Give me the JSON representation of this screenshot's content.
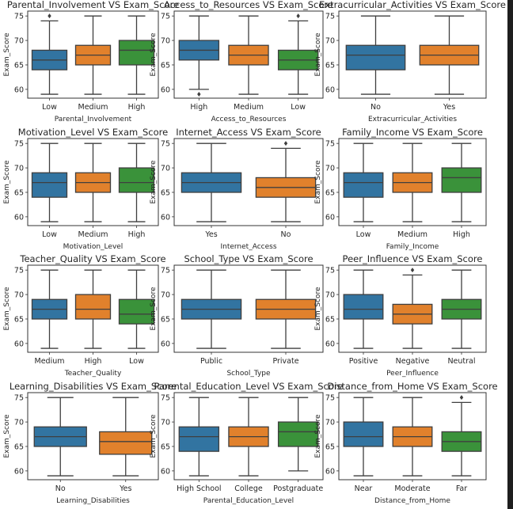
{
  "chart_data": {
    "type": "boxplot",
    "ylabel": "Exam_Score",
    "ylim": [
      58.2,
      76
    ],
    "yticks": [
      60,
      65,
      70,
      75
    ],
    "grid": false,
    "palette": [
      "#3274a1",
      "#e1812c",
      "#3a923a"
    ],
    "panels": [
      {
        "title": "Parental_Involvement VS Exam_Score",
        "xlabel": "Parental_Involvement",
        "boxes": [
          {
            "category": "Low",
            "whislo": 59,
            "q1": 64,
            "median": 66,
            "q3": 68,
            "whishi": 74,
            "outliers": [
              75
            ]
          },
          {
            "category": "Medium",
            "whislo": 59,
            "q1": 65,
            "median": 67,
            "q3": 69,
            "whishi": 75,
            "outliers": []
          },
          {
            "category": "High",
            "whislo": 59,
            "q1": 65,
            "median": 68,
            "q3": 70,
            "whishi": 75,
            "outliers": []
          }
        ]
      },
      {
        "title": "Access_to_Resources VS Exam_Score",
        "xlabel": "Access_to_Resources",
        "boxes": [
          {
            "category": "High",
            "whislo": 60,
            "q1": 66,
            "median": 68,
            "q3": 70,
            "whishi": 75,
            "outliers": [
              59
            ]
          },
          {
            "category": "Medium",
            "whislo": 59,
            "q1": 65,
            "median": 67,
            "q3": 69,
            "whishi": 75,
            "outliers": []
          },
          {
            "category": "Low",
            "whislo": 59,
            "q1": 64,
            "median": 66,
            "q3": 68,
            "whishi": 74,
            "outliers": [
              75
            ]
          }
        ]
      },
      {
        "title": "Extracurricular_Activities VS Exam_Score",
        "xlabel": "Extracurricular_Activities",
        "boxes": [
          {
            "category": "No",
            "whislo": 59,
            "q1": 64,
            "median": 67,
            "q3": 69,
            "whishi": 75,
            "outliers": []
          },
          {
            "category": "Yes",
            "whislo": 59,
            "q1": 65,
            "median": 67,
            "q3": 69,
            "whishi": 75,
            "outliers": []
          }
        ]
      },
      {
        "title": "Motivation_Level VS Exam_Score",
        "xlabel": "Motivation_Level",
        "boxes": [
          {
            "category": "Low",
            "whislo": 59,
            "q1": 64,
            "median": 67,
            "q3": 69,
            "whishi": 75,
            "outliers": []
          },
          {
            "category": "Medium",
            "whislo": 59,
            "q1": 65,
            "median": 67,
            "q3": 69,
            "whishi": 75,
            "outliers": []
          },
          {
            "category": "High",
            "whislo": 59,
            "q1": 65,
            "median": 67,
            "q3": 70,
            "whishi": 75,
            "outliers": []
          }
        ]
      },
      {
        "title": "Internet_Access VS Exam_Score",
        "xlabel": "Internet_Access",
        "boxes": [
          {
            "category": "Yes",
            "whislo": 59,
            "q1": 65,
            "median": 67,
            "q3": 69,
            "whishi": 75,
            "outliers": []
          },
          {
            "category": "No",
            "whislo": 59,
            "q1": 64,
            "median": 66,
            "q3": 68,
            "whishi": 74,
            "outliers": [
              75
            ]
          }
        ]
      },
      {
        "title": "Family_Income VS Exam_Score",
        "xlabel": "Family_Income",
        "boxes": [
          {
            "category": "Low",
            "whislo": 59,
            "q1": 64,
            "median": 67,
            "q3": 69,
            "whishi": 75,
            "outliers": []
          },
          {
            "category": "Medium",
            "whislo": 59,
            "q1": 65,
            "median": 67,
            "q3": 69,
            "whishi": 75,
            "outliers": []
          },
          {
            "category": "High",
            "whislo": 59,
            "q1": 65,
            "median": 68,
            "q3": 70,
            "whishi": 75,
            "outliers": []
          }
        ]
      },
      {
        "title": "Teacher_Quality VS Exam_Score",
        "xlabel": "Teacher_Quality",
        "boxes": [
          {
            "category": "Medium",
            "whislo": 59,
            "q1": 65,
            "median": 67,
            "q3": 69,
            "whishi": 75,
            "outliers": []
          },
          {
            "category": "High",
            "whislo": 59,
            "q1": 65,
            "median": 67,
            "q3": 70,
            "whishi": 75,
            "outliers": []
          },
          {
            "category": "Low",
            "whislo": 59,
            "q1": 64,
            "median": 66,
            "q3": 69,
            "whishi": 75,
            "outliers": []
          }
        ]
      },
      {
        "title": "School_Type VS Exam_Score",
        "xlabel": "School_Type",
        "boxes": [
          {
            "category": "Public",
            "whislo": 59,
            "q1": 65,
            "median": 67,
            "q3": 69,
            "whishi": 75,
            "outliers": []
          },
          {
            "category": "Private",
            "whislo": 59,
            "q1": 65,
            "median": 67,
            "q3": 69,
            "whishi": 75,
            "outliers": []
          }
        ]
      },
      {
        "title": "Peer_Influence VS Exam_Score",
        "xlabel": "Peer_Influence",
        "boxes": [
          {
            "category": "Positive",
            "whislo": 59,
            "q1": 65,
            "median": 67,
            "q3": 70,
            "whishi": 75,
            "outliers": []
          },
          {
            "category": "Negative",
            "whislo": 59,
            "q1": 64,
            "median": 66,
            "q3": 68,
            "whishi": 74,
            "outliers": [
              75
            ]
          },
          {
            "category": "Neutral",
            "whislo": 59,
            "q1": 65,
            "median": 67,
            "q3": 69,
            "whishi": 75,
            "outliers": []
          }
        ]
      },
      {
        "title": "Learning_Disabilities VS Exam_Score",
        "xlabel": "Learning_Disabilities",
        "boxes": [
          {
            "category": "No",
            "whislo": 59,
            "q1": 65,
            "median": 67,
            "q3": 69,
            "whishi": 75,
            "outliers": []
          },
          {
            "category": "Yes",
            "whislo": 59,
            "q1": 63.4,
            "median": 66,
            "q3": 68,
            "whishi": 75,
            "outliers": []
          }
        ]
      },
      {
        "title": "Parental_Education_Level VS Exam_Score",
        "xlabel": "Parental_Education_Level",
        "boxes": [
          {
            "category": "High School",
            "whislo": 59,
            "q1": 64,
            "median": 67,
            "q3": 69,
            "whishi": 75,
            "outliers": []
          },
          {
            "category": "College",
            "whislo": 59,
            "q1": 65,
            "median": 67,
            "q3": 69,
            "whishi": 75,
            "outliers": []
          },
          {
            "category": "Postgraduate",
            "whislo": 60,
            "q1": 65,
            "median": 68,
            "q3": 70,
            "whishi": 75,
            "outliers": []
          }
        ]
      },
      {
        "title": "Distance_from_Home VS Exam_Score",
        "xlabel": "Distance_from_Home",
        "boxes": [
          {
            "category": "Near",
            "whislo": 59,
            "q1": 65,
            "median": 67,
            "q3": 70,
            "whishi": 75,
            "outliers": []
          },
          {
            "category": "Moderate",
            "whislo": 59,
            "q1": 65,
            "median": 67,
            "q3": 69,
            "whishi": 75,
            "outliers": []
          },
          {
            "category": "Far",
            "whislo": 59,
            "q1": 64,
            "median": 66,
            "q3": 68,
            "whishi": 74,
            "outliers": [
              75
            ]
          }
        ]
      }
    ]
  }
}
